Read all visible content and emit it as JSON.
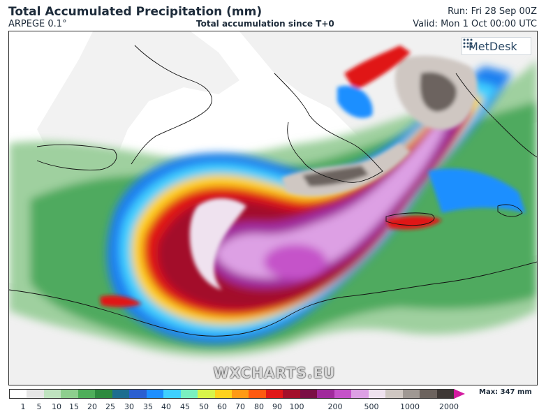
{
  "header": {
    "title": "Total Accumulated Precipitation (mm)",
    "model": "ARPEGE 0.1°",
    "subtitle": "Total accumulation since T+0",
    "run": "Run: Fri 28 Sep 00Z",
    "valid": "Valid: Mon 1 Oct 00:00 UTC"
  },
  "branding": {
    "logo_text": "MetDesk",
    "logo_icon": "metdesk-logo-icon",
    "watermark": "WXCHARTS.EU"
  },
  "legend": {
    "max_label": "Max: 347 mm",
    "ticks": [
      "1",
      "5",
      "10",
      "15",
      "20",
      "25",
      "30",
      "35",
      "40",
      "45",
      "50",
      "60",
      "70",
      "80",
      "90",
      "100",
      "200",
      "500",
      "1000",
      "2000"
    ],
    "colors": [
      "#ffffff",
      "#e6e6e6",
      "#bfe3bf",
      "#8ecf8e",
      "#4fae5a",
      "#2d8a3e",
      "#1d6d8f",
      "#2b5fd0",
      "#1e8fff",
      "#3fd0ff",
      "#7af0c0",
      "#d8f54a",
      "#ffd21e",
      "#ff9a16",
      "#ff5a10",
      "#e01818",
      "#a3102a",
      "#7a0f45",
      "#a02a9c",
      "#c552c9",
      "#dda0e4",
      "#efe2ef",
      "#cfc7c2",
      "#9f9893",
      "#6c635e",
      "#3e3835"
    ],
    "arrow_color": "#d41aa0"
  }
}
